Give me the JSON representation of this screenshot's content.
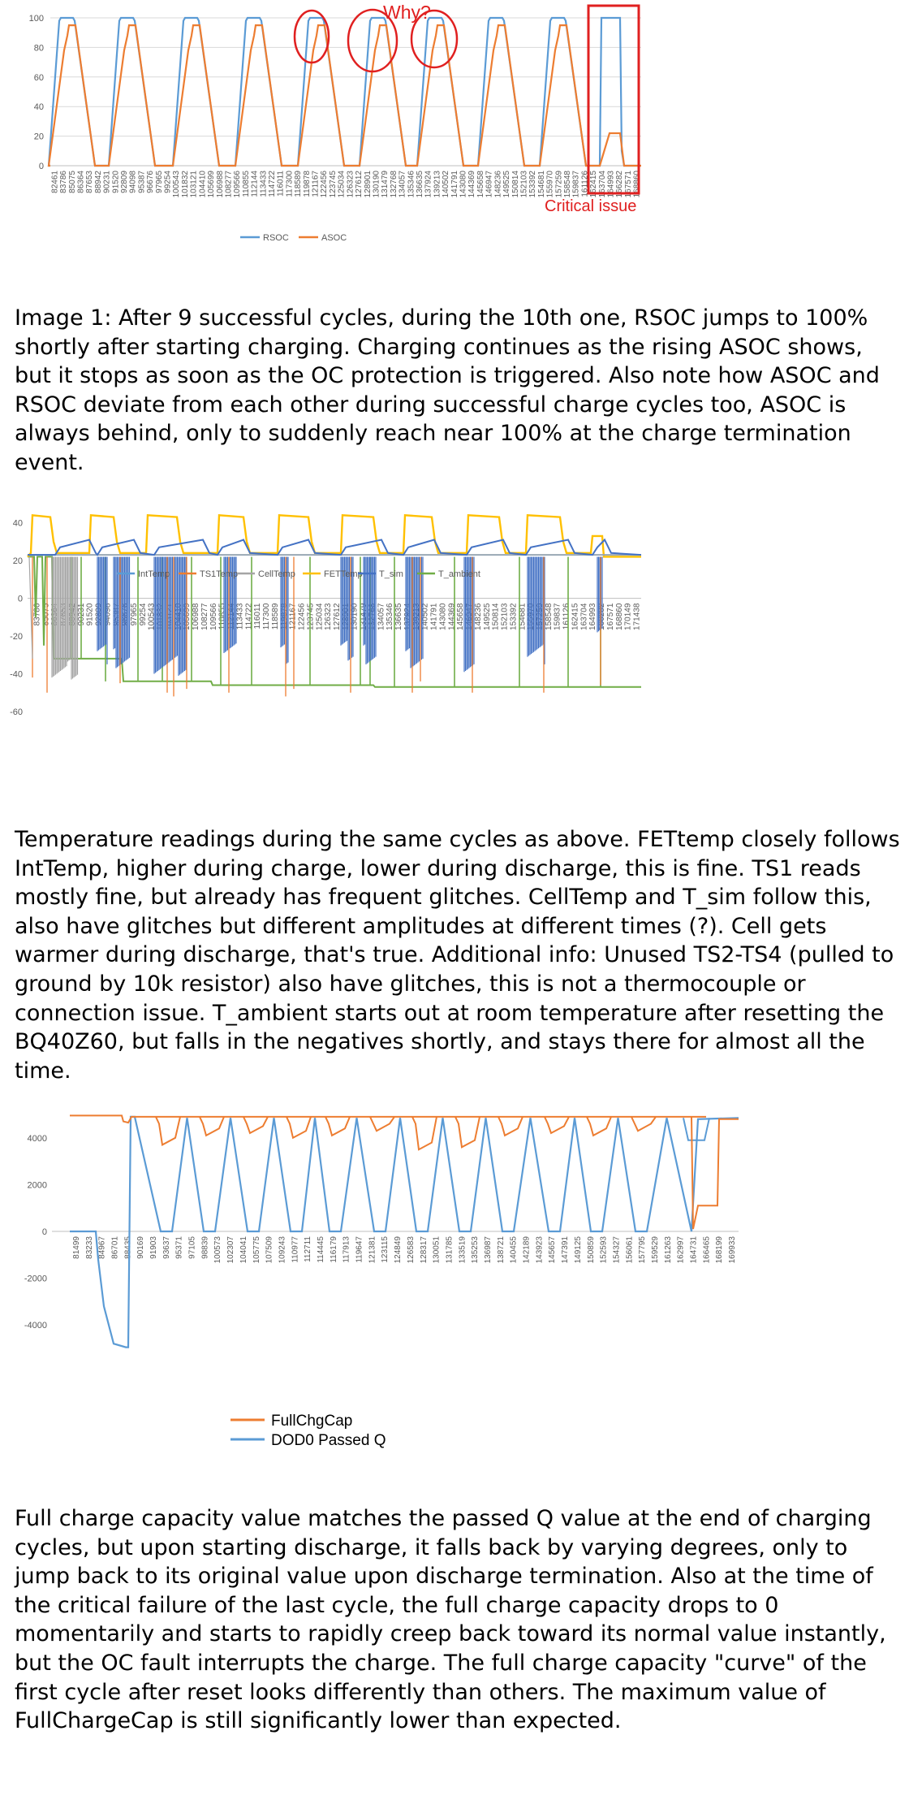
{
  "charts": [
    {
      "type": "line",
      "ylim": [
        0,
        100
      ],
      "yticks": [
        "0",
        "20",
        "40",
        "60",
        "80",
        "100"
      ],
      "xticks": [
        "82461",
        "83786",
        "85075",
        "86364",
        "87653",
        "88942",
        "90231",
        "91520",
        "92809",
        "94098",
        "95387",
        "96676",
        "97965",
        "99254",
        "100543",
        "101832",
        "103121",
        "104410",
        "105699",
        "106988",
        "108277",
        "109566",
        "110855",
        "112144",
        "113433",
        "114722",
        "116011",
        "117300",
        "118589",
        "119878",
        "121167",
        "122456",
        "123745",
        "125034",
        "126323",
        "127612",
        "128901",
        "130190",
        "131479",
        "132768",
        "134057",
        "135346",
        "136635",
        "137924",
        "139213",
        "140502",
        "141791",
        "143080",
        "144369",
        "145658",
        "146947",
        "148236",
        "149525",
        "150814",
        "152103",
        "153392",
        "154681",
        "155970",
        "157259",
        "158548",
        "159837",
        "161126",
        "162415",
        "163704",
        "164993",
        "166282",
        "167571",
        "168860"
      ],
      "legend": [
        "RSOC",
        "ASOC"
      ],
      "colors": {
        "RSOC": "#5b9bd5",
        "ASOC": "#ed7d31"
      },
      "annotations": {
        "why": "Why?",
        "critical": "Critical issue"
      },
      "annotation_color": "#e02020"
    },
    {
      "type": "line",
      "ylim": [
        -60,
        45
      ],
      "yticks": [
        "-60",
        "-40",
        "-20",
        "0",
        "20",
        "40"
      ],
      "xticks": [
        "83786",
        "85075",
        "86364",
        "87653",
        "88942",
        "90231",
        "91520",
        "92809",
        "94098",
        "95387",
        "96676",
        "97965",
        "99254",
        "100543",
        "101832",
        "103121",
        "104410",
        "105699",
        "106988",
        "108277",
        "109566",
        "110855",
        "112144",
        "113433",
        "114722",
        "116011",
        "117300",
        "118589",
        "119878",
        "121167",
        "122456",
        "123745",
        "125034",
        "126323",
        "127612",
        "128901",
        "130190",
        "131479",
        "132768",
        "134057",
        "135346",
        "136635",
        "137924",
        "139213",
        "140502",
        "141791",
        "143080",
        "144369",
        "145658",
        "146947",
        "148236",
        "149525",
        "150814",
        "152103",
        "153392",
        "154681",
        "155970",
        "157259",
        "158548",
        "159837",
        "161126",
        "162415",
        "163704",
        "164993",
        "166282",
        "167571",
        "168860",
        "170149",
        "171438"
      ],
      "legend": [
        "IntTemp",
        "TS1Temp",
        "CellTemp",
        "FETTemp",
        "T_sim",
        "T_ambient"
      ],
      "colors": {
        "IntTemp": "#5b9bd5",
        "TS1Temp": "#ed7d31",
        "CellTemp": "#a5a5a5",
        "FETTemp": "#ffc000",
        "T_sim": "#4472c4",
        "T_ambient": "#70ad47"
      }
    },
    {
      "type": "line",
      "ylim": [
        -5000,
        5000
      ],
      "yticks": [
        "-4000",
        "-2000",
        "0",
        "2000",
        "4000"
      ],
      "xticks": [
        "81499",
        "83233",
        "84967",
        "86701",
        "88435",
        "90169",
        "91903",
        "93637",
        "95371",
        "97105",
        "98839",
        "100573",
        "102307",
        "104041",
        "105775",
        "107509",
        "109243",
        "110977",
        "112711",
        "114445",
        "116179",
        "117913",
        "119647",
        "121381",
        "123115",
        "124849",
        "126583",
        "128317",
        "130051",
        "131785",
        "133519",
        "135253",
        "136987",
        "138721",
        "140455",
        "142189",
        "143923",
        "145657",
        "147391",
        "149125",
        "150859",
        "152593",
        "154327",
        "156061",
        "157795",
        "159529",
        "161263",
        "162997",
        "164731",
        "166465",
        "168199",
        "169933"
      ],
      "legend": [
        "FullChgCap",
        "DOD0 Passed Q"
      ],
      "colors": {
        "FullChgCap": "#ed7d31",
        "DOD0 Passed Q": "#5b9bd5"
      }
    }
  ],
  "paragraphs": [
    "Image 1: After 9 successful cycles, during the 10th one, RSOC jumps to 100% shortly after starting charging. Charging continues as the rising ASOC shows, but it stops as soon as the OC protection is triggered. Also note how ASOC and RSOC deviate from each other during successful charge cycles too, ASOC is always behind, only to suddenly reach near 100% at the charge termination event.",
    "Temperature readings during the same cycles as above. FETtemp closely follows IntTemp, higher during charge, lower during discharge, this is fine. TS1 reads mostly fine, but already has frequent glitches. CellTemp and T_sim follow this, also have glitches but different amplitudes at different times (?). Cell gets warmer during discharge, that's true. Additional info: Unused TS2-TS4 (pulled to ground by 10k resistor) also have glitches, this is not a thermocouple or connection issue. T_ambient starts out at room temperature after resetting the BQ40Z60, but falls in the negatives shortly, and stays there for almost all the time.",
    "Full charge capacity value matches the passed Q value at the end of charging cycles, but upon starting discharge, it falls back by varying degrees, only to jump back to its original value upon discharge termination. Also at the time of the critical failure of the last cycle, the full charge capacity drops to 0 momentarily and starts to rapidly creep back toward its normal value instantly, but the OC fault interrupts the charge. The full charge capacity \"curve\" of the first cycle after reset looks differently than others. The maximum value of FullChargeCap is still significantly lower than expected."
  ]
}
